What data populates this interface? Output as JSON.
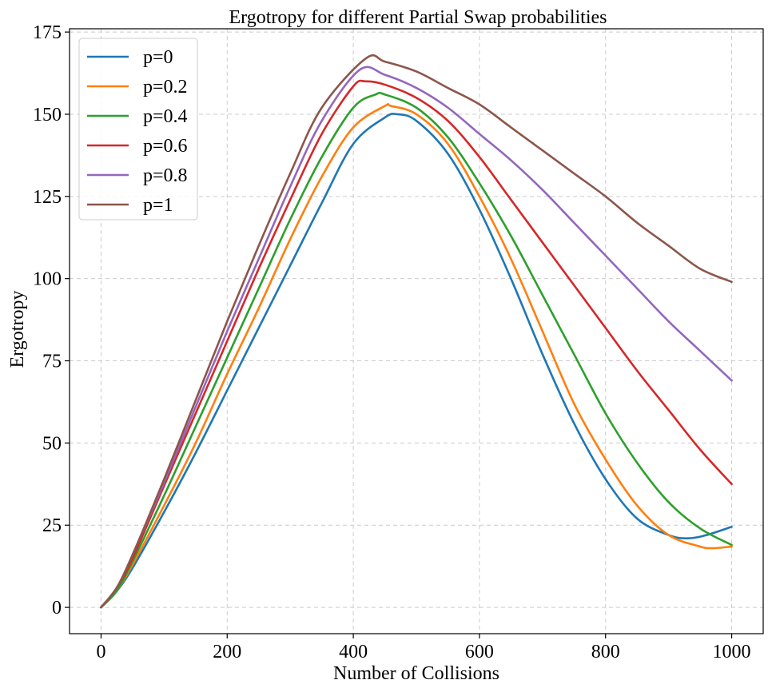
{
  "chart_data": {
    "type": "line",
    "title": "Ergotropy for different Partial Swap probabilities",
    "xlabel": "Number of Collisions",
    "ylabel": "Ergotropy",
    "xlim": [
      -50,
      1050
    ],
    "ylim": [
      -8,
      176
    ],
    "xticks": [
      0,
      200,
      400,
      600,
      800,
      1000
    ],
    "yticks": [
      0,
      25,
      50,
      75,
      100,
      125,
      150,
      175
    ],
    "grid": true,
    "legend": "top-left",
    "series": [
      {
        "name": "p=0",
        "color": "#1f77b4",
        "x": [
          0,
          25,
          50,
          100,
          150,
          200,
          250,
          300,
          350,
          400,
          450,
          470,
          500,
          550,
          600,
          650,
          700,
          750,
          800,
          850,
          900,
          930,
          960,
          1000
        ],
        "y": [
          0,
          5,
          12,
          29,
          47,
          66,
          85,
          104,
          123,
          141,
          149,
          150,
          148,
          138,
          121,
          100,
          77,
          56,
          39,
          27,
          22,
          21,
          22,
          24.5
        ]
      },
      {
        "name": "p=0.2",
        "color": "#ff7f0e",
        "x": [
          0,
          25,
          50,
          100,
          150,
          200,
          250,
          300,
          350,
          400,
          450,
          460,
          500,
          550,
          600,
          650,
          700,
          750,
          800,
          850,
          900,
          950,
          970,
          1000
        ],
        "y": [
          0,
          5,
          13,
          31,
          50,
          71,
          91,
          112,
          131,
          146,
          152.5,
          152.5,
          150,
          141,
          125,
          106,
          84,
          62,
          45,
          31,
          22,
          18.5,
          18,
          18.5
        ]
      },
      {
        "name": "p=0.4",
        "color": "#2ca02c",
        "x": [
          0,
          25,
          50,
          100,
          150,
          200,
          250,
          300,
          350,
          400,
          435,
          450,
          500,
          550,
          600,
          650,
          700,
          750,
          800,
          850,
          900,
          950,
          1000
        ],
        "y": [
          0,
          5,
          14,
          34,
          55,
          76,
          97,
          118,
          137,
          152,
          156,
          156,
          152,
          143,
          129,
          113,
          95,
          77,
          59,
          44,
          32,
          24,
          19
        ]
      },
      {
        "name": "p=0.6",
        "color": "#d62728",
        "x": [
          0,
          25,
          50,
          100,
          150,
          200,
          250,
          300,
          350,
          400,
          420,
          450,
          500,
          550,
          600,
          650,
          700,
          750,
          800,
          850,
          900,
          950,
          1000
        ],
        "y": [
          0,
          6,
          15,
          37,
          59,
          81,
          103,
          124,
          144,
          158.5,
          160,
          159,
          155,
          148,
          137,
          124,
          111,
          98,
          85,
          72,
          60,
          48,
          37.5
        ]
      },
      {
        "name": "p=0.8",
        "color": "#9467bd",
        "x": [
          0,
          25,
          50,
          100,
          150,
          200,
          250,
          300,
          350,
          410,
          450,
          500,
          550,
          600,
          650,
          700,
          750,
          800,
          850,
          900,
          950,
          1000
        ],
        "y": [
          0,
          6,
          16,
          38,
          61,
          84,
          106,
          128,
          148,
          163.5,
          162,
          158,
          152,
          144,
          136,
          127,
          117,
          107,
          97,
          87,
          78,
          69
        ]
      },
      {
        "name": "p=1",
        "color": "#8c564b",
        "x": [
          0,
          25,
          50,
          100,
          150,
          200,
          250,
          300,
          350,
          420,
          450,
          500,
          550,
          600,
          650,
          700,
          750,
          800,
          850,
          900,
          950,
          1000
        ],
        "y": [
          0,
          6,
          16,
          39,
          63,
          87,
          110,
          132,
          152,
          167,
          166,
          163,
          158,
          153,
          146,
          139,
          132,
          125,
          117,
          110,
          103,
          99
        ]
      }
    ]
  }
}
